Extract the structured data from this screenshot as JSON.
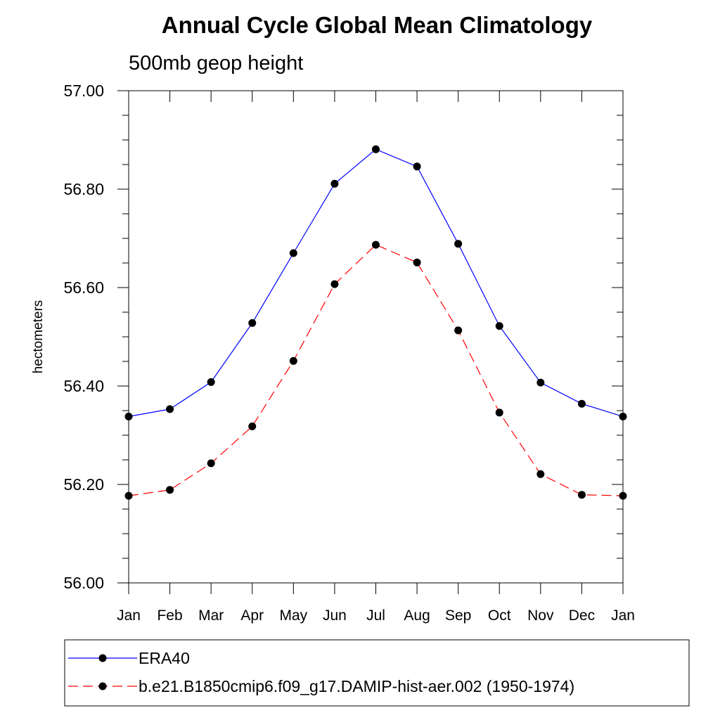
{
  "chart_data": {
    "type": "line",
    "title": "Annual Cycle Global Mean Climatology",
    "subtitle": "500mb geop height",
    "xlabel": "",
    "ylabel": "hectometers",
    "categories": [
      "Jan",
      "Feb",
      "Mar",
      "Apr",
      "May",
      "Jun",
      "Jul",
      "Aug",
      "Sep",
      "Oct",
      "Nov",
      "Dec",
      "Jan"
    ],
    "ylim": [
      56.0,
      57.0
    ],
    "yticks": [
      "56.00",
      "56.20",
      "56.40",
      "56.60",
      "56.80",
      "57.00"
    ],
    "grid": false,
    "legend_position": "bottom",
    "series": [
      {
        "name": "ERA40",
        "color": "#0000ff",
        "line_style": "solid",
        "marker": "filled-circle",
        "values": [
          56.338,
          56.353,
          56.408,
          56.528,
          56.67,
          56.811,
          56.881,
          56.846,
          56.689,
          56.522,
          56.407,
          56.364,
          56.338
        ]
      },
      {
        "name": "b.e21.B1850cmip6.f09_g17.DAMIP-hist-aer.002 (1950-1974)",
        "color": "#ff0000",
        "line_style": "dashed",
        "marker": "filled-circle",
        "values": [
          56.177,
          56.189,
          56.243,
          56.318,
          56.451,
          56.607,
          56.687,
          56.651,
          56.513,
          56.346,
          56.221,
          56.179,
          56.177
        ]
      }
    ]
  }
}
